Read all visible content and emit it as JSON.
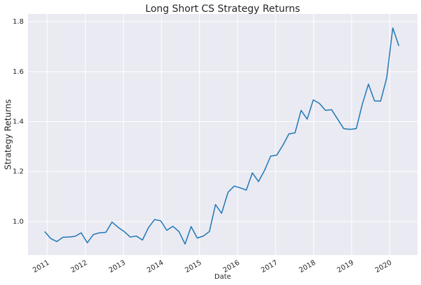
{
  "chart_data": {
    "type": "line",
    "title": "Long Short CS Strategy Returns",
    "x_label": "Date",
    "y_label": "Strategy Returns",
    "grid": true,
    "xlim": [
      2010.49,
      2020.73
    ],
    "ylim": [
      0.866,
      1.831
    ],
    "xticks": [
      2011,
      2012,
      2013,
      2014,
      2015,
      2016,
      2017,
      2018,
      2019,
      2020
    ],
    "yticks": [
      {
        "value": 1,
        "label": "1.0"
      },
      1.2,
      1.4,
      1.6,
      1.8
    ],
    "x": [
      2010.93,
      2011.09,
      2011.25,
      2011.41,
      2011.57,
      2011.73,
      2011.89,
      2012.05,
      2012.21,
      2012.37,
      2012.54,
      2012.7,
      2012.86,
      2013.02,
      2013.18,
      2013.34,
      2013.5,
      2013.66,
      2013.82,
      2013.98,
      2014.14,
      2014.3,
      2014.46,
      2014.62,
      2014.78,
      2014.94,
      2015.1,
      2015.26,
      2015.42,
      2015.58,
      2015.75,
      2015.91,
      2016.07,
      2016.23,
      2016.39,
      2016.55,
      2016.71,
      2016.87,
      2017.03,
      2017.19,
      2017.35,
      2017.51,
      2017.67,
      2017.83,
      2017.99,
      2018.15,
      2018.31,
      2018.47,
      2018.63,
      2018.79,
      2018.96,
      2019.12,
      2019.28,
      2019.44,
      2019.6,
      2019.76,
      2019.92,
      2020.08,
      2020.24
    ],
    "series": [
      {
        "color": "#1f77b4",
        "values": [
          0.96,
          0.932,
          0.92,
          0.937,
          0.938,
          0.941,
          0.955,
          0.915,
          0.948,
          0.955,
          0.957,
          0.998,
          0.977,
          0.96,
          0.938,
          0.942,
          0.926,
          0.976,
          1.008,
          1.003,
          0.965,
          0.981,
          0.96,
          0.91,
          0.98,
          0.934,
          0.942,
          0.96,
          1.068,
          1.033,
          1.117,
          1.142,
          1.135,
          1.126,
          1.195,
          1.16,
          1.205,
          1.262,
          1.266,
          1.305,
          1.351,
          1.355,
          1.445,
          1.41,
          1.487,
          1.473,
          1.445,
          1.448,
          1.41,
          1.372,
          1.369,
          1.372,
          1.47,
          1.55,
          1.483,
          1.482,
          1.575,
          1.775,
          1.703
        ]
      }
    ]
  }
}
